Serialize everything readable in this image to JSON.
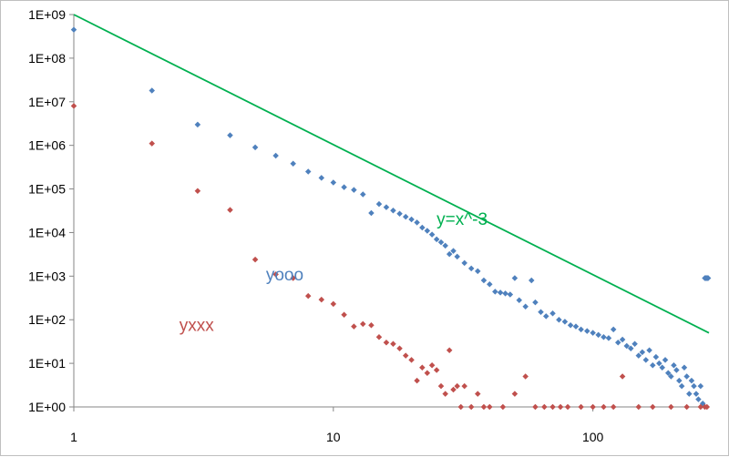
{
  "chart_data": {
    "type": "scatter",
    "title": "",
    "xlabel": "",
    "ylabel": "",
    "x_scale": "log",
    "y_scale": "log",
    "xlim": [
      1,
      280
    ],
    "ylim": [
      1,
      1000000000
    ],
    "grid": false,
    "legend": "none",
    "x_tick_labels": [
      "1",
      "10",
      "100"
    ],
    "y_tick_labels": [
      "1E+00",
      "1E+01",
      "1E+02",
      "1E+03",
      "1E+04",
      "1E+05",
      "1E+06",
      "1E+07",
      "1E+08",
      "1E+09"
    ],
    "annotations": [
      {
        "text": "y=x^-3",
        "x": 25,
        "y": 15000,
        "color": "#00b050"
      },
      {
        "text": "yooo",
        "x": 5.5,
        "y": 800,
        "color": "#4f81bd"
      },
      {
        "text": "yxxx",
        "x": 2.55,
        "y": 55,
        "color": "#c0504d"
      }
    ],
    "series": [
      {
        "name": "yooo",
        "kind": "markers",
        "color": "#4f81bd",
        "points": [
          [
            1,
            450000000
          ],
          [
            2,
            18000000
          ],
          [
            3,
            3000000
          ],
          [
            4,
            1700000
          ],
          [
            5,
            900000
          ],
          [
            6,
            580000
          ],
          [
            7,
            380000
          ],
          [
            8,
            250000
          ],
          [
            9,
            180000
          ],
          [
            10,
            140000
          ],
          [
            11,
            110000
          ],
          [
            12,
            95000
          ],
          [
            13,
            75000
          ],
          [
            14,
            28000
          ],
          [
            15,
            45000
          ],
          [
            16,
            38000
          ],
          [
            17,
            32000
          ],
          [
            18,
            27000
          ],
          [
            19,
            23000
          ],
          [
            20,
            20000
          ],
          [
            21,
            17000
          ],
          [
            22,
            13000
          ],
          [
            23,
            11000
          ],
          [
            24,
            9000
          ],
          [
            25,
            7000
          ],
          [
            26,
            6000
          ],
          [
            27,
            5000
          ],
          [
            28,
            3200
          ],
          [
            29,
            3800
          ],
          [
            30,
            2800
          ],
          [
            32,
            2000
          ],
          [
            34,
            1500
          ],
          [
            36,
            1300
          ],
          [
            38,
            800
          ],
          [
            40,
            650
          ],
          [
            42,
            440
          ],
          [
            44,
            420
          ],
          [
            46,
            400
          ],
          [
            48,
            380
          ],
          [
            50,
            900
          ],
          [
            52,
            280
          ],
          [
            55,
            200
          ],
          [
            58,
            800
          ],
          [
            60,
            250
          ],
          [
            63,
            150
          ],
          [
            66,
            120
          ],
          [
            70,
            140
          ],
          [
            74,
            100
          ],
          [
            78,
            90
          ],
          [
            82,
            75
          ],
          [
            86,
            70
          ],
          [
            90,
            60
          ],
          [
            95,
            55
          ],
          [
            100,
            50
          ],
          [
            105,
            45
          ],
          [
            110,
            40
          ],
          [
            115,
            38
          ],
          [
            120,
            60
          ],
          [
            125,
            30
          ],
          [
            130,
            35
          ],
          [
            135,
            25
          ],
          [
            140,
            22
          ],
          [
            145,
            28
          ],
          [
            150,
            15
          ],
          [
            155,
            18
          ],
          [
            160,
            12
          ],
          [
            165,
            20
          ],
          [
            170,
            9
          ],
          [
            175,
            14
          ],
          [
            180,
            10
          ],
          [
            185,
            8
          ],
          [
            190,
            12
          ],
          [
            195,
            6
          ],
          [
            200,
            5
          ],
          [
            205,
            9
          ],
          [
            210,
            7
          ],
          [
            215,
            4
          ],
          [
            220,
            3
          ],
          [
            225,
            8
          ],
          [
            230,
            5
          ],
          [
            235,
            2
          ],
          [
            240,
            4
          ],
          [
            245,
            3
          ],
          [
            250,
            2
          ],
          [
            255,
            1.5
          ],
          [
            260,
            3
          ],
          [
            265,
            1.2
          ],
          [
            270,
            900
          ],
          [
            272,
            900
          ],
          [
            274,
            900
          ],
          [
            276,
            900
          ],
          [
            278,
            900
          ]
        ]
      },
      {
        "name": "yxxx",
        "kind": "markers",
        "color": "#c0504d",
        "points": [
          [
            1,
            8000000
          ],
          [
            2,
            1100000
          ],
          [
            3,
            90000
          ],
          [
            4,
            33000
          ],
          [
            5,
            2400
          ],
          [
            6,
            1100
          ],
          [
            7,
            900
          ],
          [
            8,
            350
          ],
          [
            9,
            290
          ],
          [
            10,
            230
          ],
          [
            11,
            130
          ],
          [
            12,
            70
          ],
          [
            13,
            80
          ],
          [
            14,
            75
          ],
          [
            15,
            40
          ],
          [
            16,
            30
          ],
          [
            17,
            28
          ],
          [
            18,
            22
          ],
          [
            19,
            15
          ],
          [
            20,
            12
          ],
          [
            21,
            4
          ],
          [
            22,
            8
          ],
          [
            23,
            6
          ],
          [
            24,
            9
          ],
          [
            25,
            7
          ],
          [
            26,
            3
          ],
          [
            27,
            2
          ],
          [
            28,
            20
          ],
          [
            29,
            2.5
          ],
          [
            30,
            3
          ],
          [
            31,
            1
          ],
          [
            32,
            3
          ],
          [
            34,
            1
          ],
          [
            36,
            2
          ],
          [
            38,
            1
          ],
          [
            40,
            1
          ],
          [
            45,
            1
          ],
          [
            50,
            2
          ],
          [
            55,
            5
          ],
          [
            60,
            1
          ],
          [
            65,
            1
          ],
          [
            70,
            1
          ],
          [
            75,
            1
          ],
          [
            80,
            1
          ],
          [
            90,
            1
          ],
          [
            100,
            1
          ],
          [
            110,
            1
          ],
          [
            120,
            1
          ],
          [
            130,
            5
          ],
          [
            150,
            1
          ],
          [
            170,
            1
          ],
          [
            200,
            1
          ],
          [
            230,
            1
          ],
          [
            260,
            1
          ],
          [
            270,
            1
          ],
          [
            275,
            1
          ]
        ]
      },
      {
        "name": "y=x^-3",
        "kind": "line",
        "color": "#00b050",
        "points": [
          [
            1,
            1000000000
          ],
          [
            280,
            50
          ]
        ]
      }
    ]
  }
}
